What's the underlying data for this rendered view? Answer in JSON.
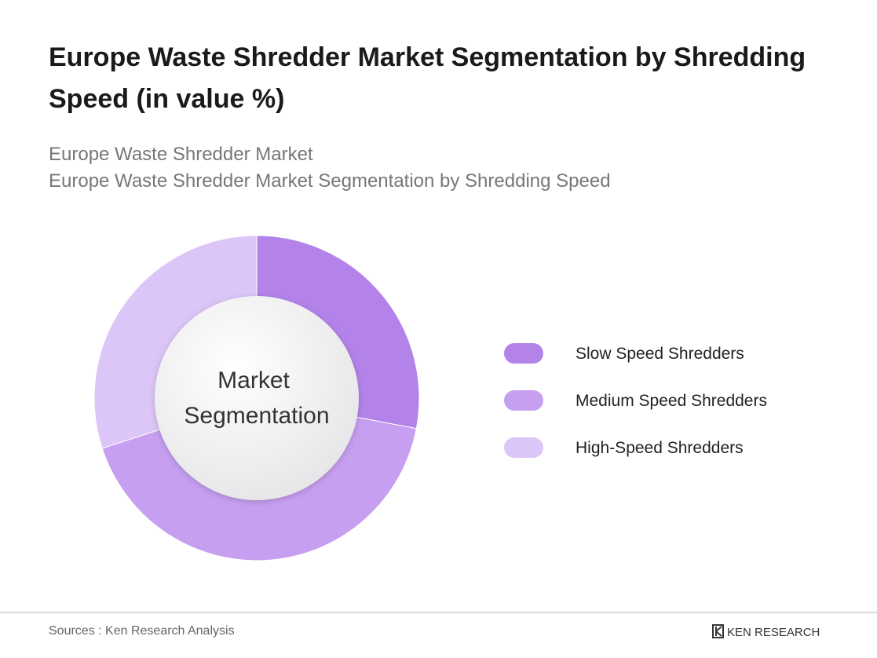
{
  "chart_data": {
    "type": "donut",
    "title": "Europe Waste Shredder Market Segmentation by Shredding Speed (in value %)",
    "subtitle": [
      "Europe Waste Shredder Market",
      "Europe Waste Shredder Market Segmentation by Shredding Speed"
    ],
    "center_label": [
      "Market",
      "Segmentation"
    ],
    "categories": [
      "Slow Speed Shredders",
      "Medium Speed Shredders",
      "High-Speed Shredders"
    ],
    "values": [
      28,
      42,
      30
    ],
    "colors": [
      "#b383ea",
      "#c69ff0",
      "#dcc5f7"
    ],
    "legend": "right"
  },
  "footer": {
    "source": "Sources : Ken Research Analysis",
    "logo": "KEN RESEARCH"
  }
}
